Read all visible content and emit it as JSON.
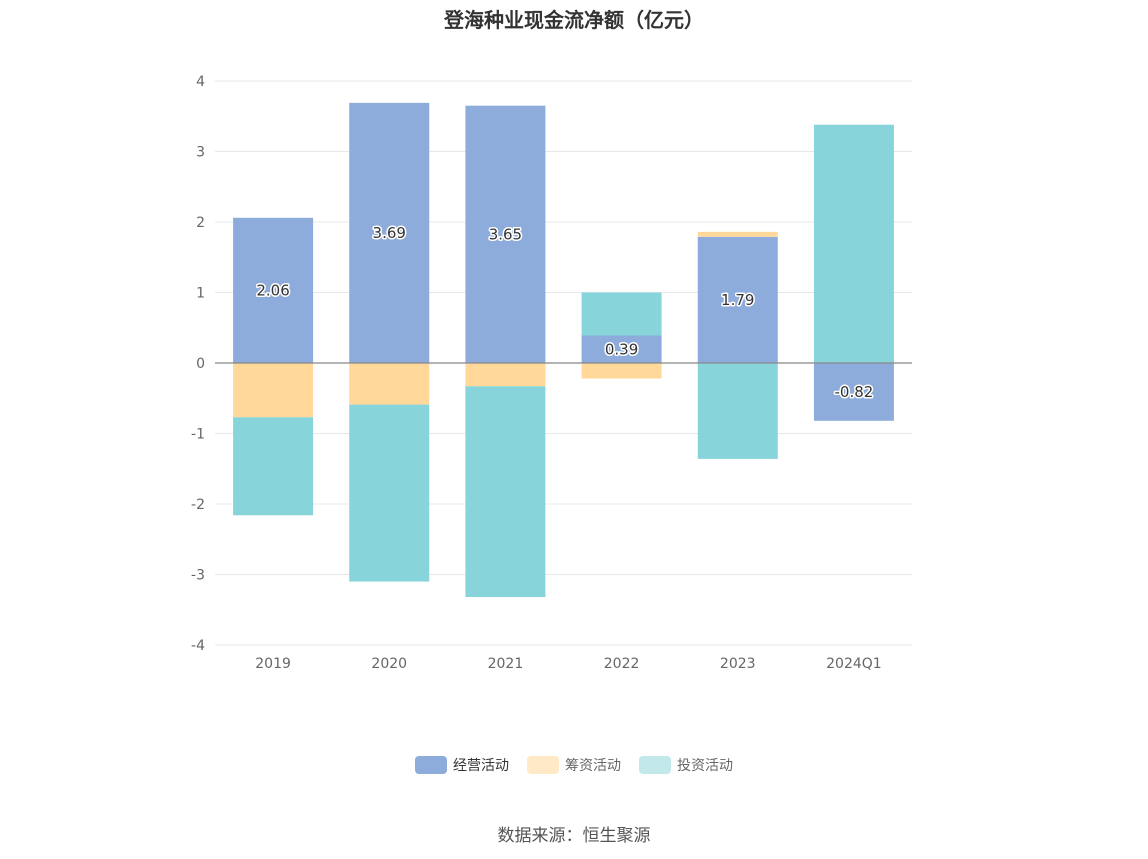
{
  "chart_data": {
    "type": "bar",
    "stacked": true,
    "title": "登海种业现金流净额（亿元）",
    "categories": [
      "2019",
      "2020",
      "2021",
      "2022",
      "2023",
      "2024Q1"
    ],
    "series": [
      {
        "name": "经营活动",
        "color": "#8eacdb",
        "values": [
          2.06,
          3.69,
          3.65,
          0.39,
          1.79,
          -0.82
        ],
        "labels": [
          "2.06",
          "3.69",
          "3.65",
          "0.39",
          "1.79",
          "-0.82"
        ]
      },
      {
        "name": "筹资活动",
        "color": "#ffd89a",
        "legend_color": "#ffe9c6",
        "values": [
          -0.77,
          -0.59,
          -0.33,
          -0.22,
          0.07,
          0.0
        ]
      },
      {
        "name": "投资活动",
        "color": "#87d5da",
        "legend_color": "#c2e8ea",
        "values": [
          -1.39,
          -2.51,
          -2.99,
          0.61,
          -1.36,
          3.38
        ]
      }
    ],
    "ylim": [
      -4,
      4
    ],
    "yticks": [
      "4",
      "3",
      "2",
      "1",
      "0",
      "-1",
      "-2",
      "-3",
      "-4"
    ],
    "xlabel": "",
    "ylabel": "",
    "grid": true,
    "legend": "bottom"
  },
  "source": "数据来源：恒生聚源"
}
